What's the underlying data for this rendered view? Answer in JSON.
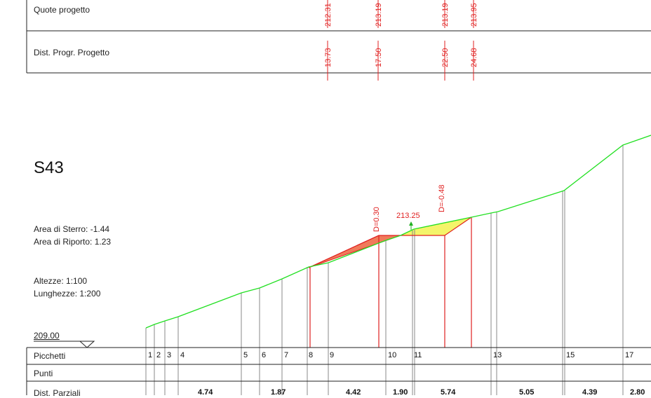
{
  "top_table": {
    "row1_label": "Quote progetto",
    "row2_label": "Dist. Progr. Progetto",
    "quote_values": [
      "212.31",
      "213.19",
      "213.19",
      "213.95"
    ],
    "dist_values": [
      "13.73",
      "17.50",
      "22.50",
      "24.68"
    ]
  },
  "section": {
    "title": "S43",
    "area_sterro": "Area di Sterro: -1.44",
    "area_riporto": "Area di Riporto: 1.23",
    "scale_altezze": "Altezze: 1:100",
    "scale_lunghezze": "Lunghezze: 1:200",
    "datum": "209.00",
    "marker_level": "213.25",
    "marker_d_left": "D=0.30",
    "marker_d_right": "D=-0.48"
  },
  "bottom_table": {
    "picchetti_label": "Picchetti",
    "punti_label": "Punti",
    "dist_parziali_label": "Dist. Parziali",
    "picchetti": [
      "1",
      "2",
      "3",
      "4",
      "5",
      "6",
      "7",
      "8",
      "9",
      "10",
      "11",
      "13",
      "15",
      "17"
    ],
    "dist_parziali": [
      "4.74",
      "1.87",
      "4.42",
      "1.90",
      "5.74",
      "5.05",
      "4.39",
      "2.80"
    ]
  },
  "colors": {
    "ground_line": "#22e022",
    "project_line": "#e02020",
    "cut_fill": "#f07a5a",
    "fill_fill": "#f4f46a",
    "station_line": "#888888"
  }
}
